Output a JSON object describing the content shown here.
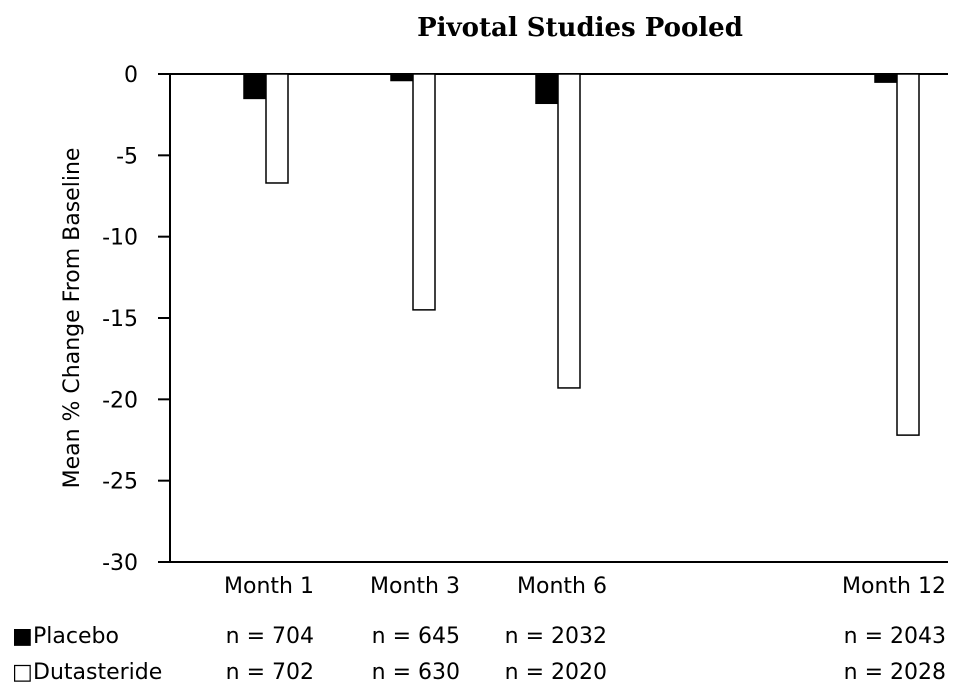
{
  "chart_data": {
    "type": "bar",
    "title": "Pivotal Studies Pooled",
    "ylabel": "Mean % Change From Baseline",
    "xlabel": "",
    "ylim": [
      -30,
      0
    ],
    "yticks": [
      "0",
      "-5",
      "-10",
      "-15",
      "-20",
      "-25",
      "-30"
    ],
    "categories": [
      "Month 1",
      "Month 3",
      "Month 6",
      "Month 12"
    ],
    "series": [
      {
        "name": "Placebo",
        "color": "#000000",
        "fill": "solid",
        "values": [
          -1.5,
          -0.4,
          -1.8,
          -0.5
        ],
        "n": [
          "n = 704",
          "n = 645",
          "n = 2032",
          "n = 2043"
        ]
      },
      {
        "name": "Dutasteride",
        "color": "#ffffff",
        "fill": "hollow",
        "values": [
          -6.7,
          -14.5,
          -19.3,
          -22.2
        ],
        "n": [
          "n = 702",
          "n = 630",
          "n = 2020",
          "n = 2028"
        ]
      }
    ],
    "legend": {
      "placement": "bottom-left",
      "symbols": [
        "■",
        "□"
      ]
    },
    "grid": false
  }
}
